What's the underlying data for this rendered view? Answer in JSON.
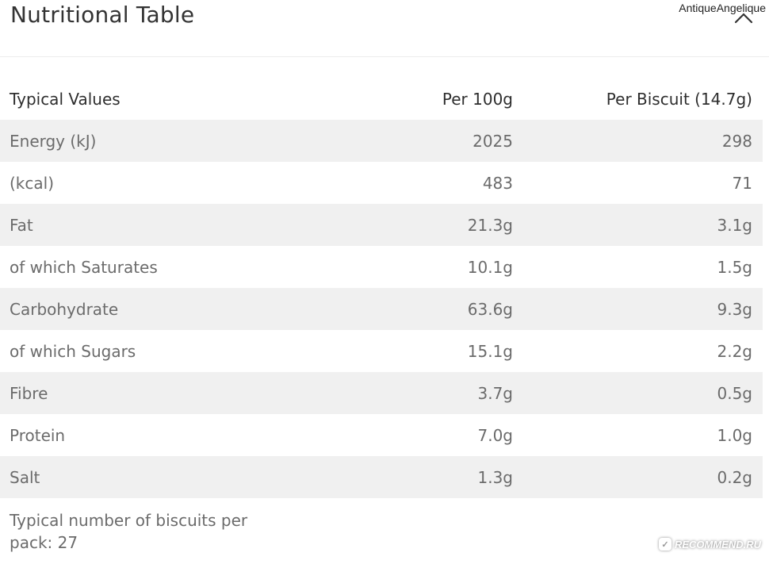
{
  "header": {
    "title": "Nutritional Table",
    "close_icon": "close-icon"
  },
  "watermarks": {
    "user": "AntiqueAngelique",
    "site": "RECOMMEND.RU"
  },
  "table": {
    "columns": [
      "Typical Values",
      "Per 100g",
      "Per Biscuit (14.7g)"
    ],
    "rows": [
      [
        "Energy (kJ)",
        "2025",
        "298"
      ],
      [
        "(kcal)",
        "483",
        "71"
      ],
      [
        "Fat",
        "21.3g",
        "3.1g"
      ],
      [
        "of which Saturates",
        "10.1g",
        "1.5g"
      ],
      [
        "Carbohydrate",
        "63.6g",
        "9.3g"
      ],
      [
        "of which Sugars",
        "15.1g",
        "2.2g"
      ],
      [
        "Fibre",
        "3.7g",
        "0.5g"
      ],
      [
        "Protein",
        "7.0g",
        "1.0g"
      ],
      [
        "Salt",
        "1.3g",
        "0.2g"
      ]
    ]
  },
  "footer": {
    "note": "Typical number of biscuits per pack: 27"
  },
  "colors": {
    "shaded_row": "#f0f0f0",
    "text": "#6b6b6b",
    "heading": "#2e2e2e"
  }
}
